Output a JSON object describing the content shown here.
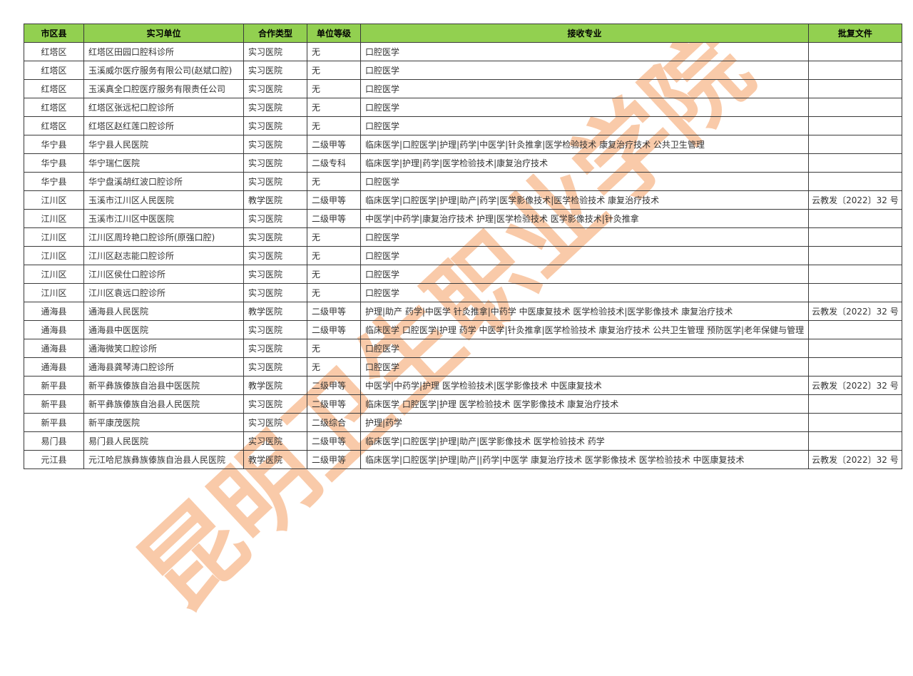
{
  "watermark": {
    "text": "昆明卫生职业学院",
    "color": "#F6B588"
  },
  "colors": {
    "header_bg": "#92D050",
    "border": "#3A3A3A",
    "body_text": "#333333"
  },
  "table": {
    "headers": [
      "市区县",
      "实习单位",
      "合作类型",
      "单位等级",
      "接收专业",
      "批复文件"
    ],
    "rows": [
      [
        "红塔区",
        "红塔区田园口腔科诊所",
        "实习医院",
        "无",
        "口腔医学",
        ""
      ],
      [
        "红塔区",
        "玉溪威尔医疗服务有限公司(赵斌口腔)",
        "实习医院",
        "无",
        "口腔医学",
        ""
      ],
      [
        "红塔区",
        "玉溪真全口腔医疗服务有限责任公司",
        "实习医院",
        "无",
        "口腔医学",
        ""
      ],
      [
        "红塔区",
        "红塔区张远杞口腔诊所",
        "实习医院",
        "无",
        "口腔医学",
        ""
      ],
      [
        "红塔区",
        "红塔区赵红莲口腔诊所",
        "实习医院",
        "无",
        "口腔医学",
        ""
      ],
      [
        "华宁县",
        "华宁县人民医院",
        "实习医院",
        "二级甲等",
        "临床医学|口腔医学|护理|药学|中医学|针灸推拿|医学检验技术 康复治疗技术 公共卫生管理",
        ""
      ],
      [
        "华宁县",
        "华宁瑞仁医院",
        "实习医院",
        "二级专科",
        "临床医学|护理|药学|医学检验技术|康复治疗技术",
        ""
      ],
      [
        "华宁县",
        "华宁盘溪胡红波口腔诊所",
        "实习医院",
        "无",
        "口腔医学",
        ""
      ],
      [
        "江川区",
        "玉溪市江川区人民医院",
        "教学医院",
        "二级甲等",
        "临床医学|口腔医学|护理|助产|药学|医学影像技术|医学检验技术 康复治疗技术",
        "云教发〔2022〕32 号"
      ],
      [
        "江川区",
        "玉溪市江川区中医医院",
        "实习医院",
        "二级甲等",
        "中医学|中药学|康复治疗技术 护理|医学检验技术 医学影像技术|针灸推拿",
        ""
      ],
      [
        "江川区",
        "江川区周玲艳口腔诊所(原强口腔)",
        "实习医院",
        "无",
        "口腔医学",
        ""
      ],
      [
        "江川区",
        "江川区赵志能口腔诊所",
        "实习医院",
        "无",
        "口腔医学",
        ""
      ],
      [
        "江川区",
        "江川区侯仕口腔诊所",
        "实习医院",
        "无",
        "口腔医学",
        ""
      ],
      [
        "江川区",
        "江川区袁远口腔诊所",
        "实习医院",
        "无",
        "口腔医学",
        ""
      ],
      [
        "通海县",
        "通海县人民医院",
        "教学医院",
        "二级甲等",
        "护理|助产 药学|中医学 针灸推拿|中药学 中医康复技术 医学检验技术|医学影像技术 康复治疗技术",
        "云教发〔2022〕32 号"
      ],
      [
        "通海县",
        "通海县中医医院",
        "实习医院",
        "二级甲等",
        "临床医学 口腔医学|护理 药学 中医学|针灸推拿|医学检验技术 康复治疗技术 公共卫生管理 预防医学|老年保健与管理",
        ""
      ],
      [
        "通海县",
        "通海微笑口腔诊所",
        "实习医院",
        "无",
        "口腔医学",
        ""
      ],
      [
        "通海县",
        "通海县龚琴涛口腔诊所",
        "实习医院",
        "无",
        "口腔医学",
        ""
      ],
      [
        "新平县",
        "新平彝族傣族自治县中医医院",
        "教学医院",
        "二级甲等",
        "中医学|中药学|护理 医学检验技术|医学影像技术 中医康复技术",
        "云教发〔2022〕32 号"
      ],
      [
        "新平县",
        "新平彝族傣族自治县人民医院",
        "实习医院",
        "二级甲等",
        "临床医学 口腔医学|护理 医学检验技术 医学影像技术 康复治疗技术",
        ""
      ],
      [
        "新平县",
        "新平康茂医院",
        "实习医院",
        "二级综合",
        "护理|药学",
        ""
      ],
      [
        "易门县",
        "易门县人民医院",
        "实习医院",
        "二级甲等",
        "临床医学|口腔医学|护理|助产|医学影像技术 医学检验技术 药学",
        ""
      ],
      [
        "元江县",
        "元江哈尼族彝族傣族自治县人民医院",
        "教学医院",
        "二级甲等",
        "临床医学|口腔医学|护理|助产||药学|中医学 康复治疗技术 医学影像技术 医学检验技术 中医康复技术",
        "云教发〔2022〕32 号"
      ]
    ]
  }
}
